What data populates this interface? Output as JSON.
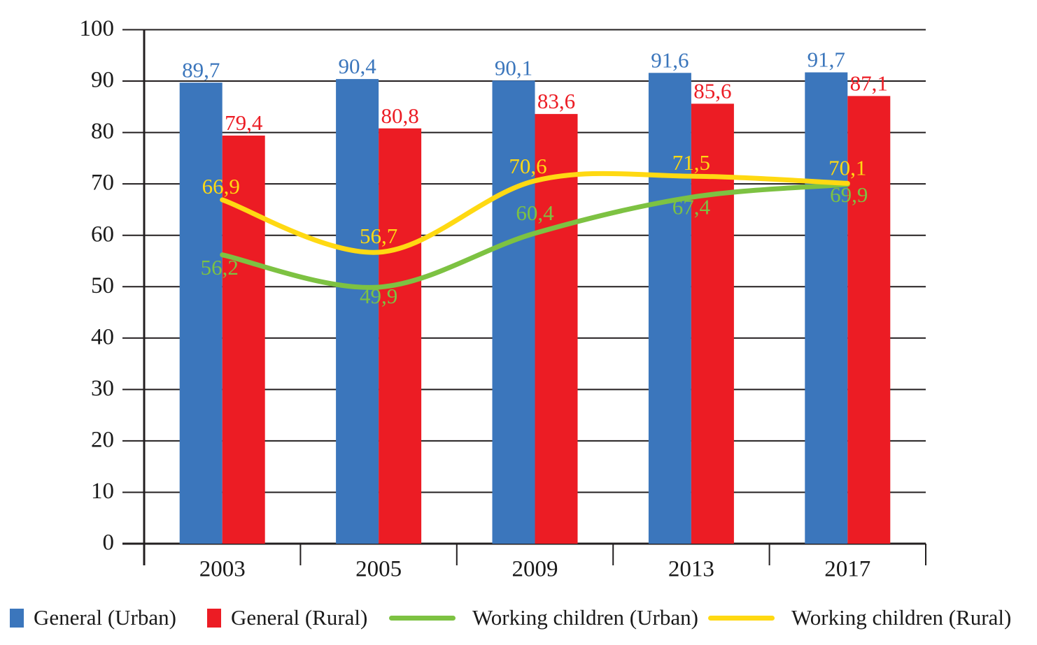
{
  "chart_data": {
    "type": "bar",
    "subtype": "grouped-bars-with-lines",
    "title": "",
    "xlabel": "",
    "ylabel": "",
    "categories": [
      "2003",
      "2005",
      "2009",
      "2013",
      "2017"
    ],
    "series": [
      {
        "name": "General (Urban)",
        "render": "bar",
        "color": "#3B76BC",
        "values": [
          89.7,
          90.4,
          90.1,
          91.6,
          91.7
        ]
      },
      {
        "name": "General (Rural)",
        "render": "bar",
        "color": "#EC1C24",
        "values": [
          79.4,
          80.8,
          83.6,
          85.6,
          87.1
        ]
      },
      {
        "name": "Working children (Urban)",
        "render": "line",
        "color": "#7DC242",
        "values": [
          56.2,
          49.9,
          60.4,
          67.4,
          69.9
        ]
      },
      {
        "name": "Working children (Rural)",
        "render": "line",
        "color": "#FFD912",
        "values": [
          66.9,
          56.7,
          70.6,
          71.5,
          70.1
        ]
      }
    ],
    "ylim": [
      0,
      100
    ],
    "yticks": [
      0,
      10,
      20,
      30,
      40,
      50,
      60,
      70,
      80,
      90,
      100
    ],
    "grid": "horizontal",
    "gridline_color": "#231F20",
    "axis_text_color": "#1a1a1a",
    "decimal_separator": ",",
    "data_labels_shown": true,
    "legend_position": "bottom"
  }
}
